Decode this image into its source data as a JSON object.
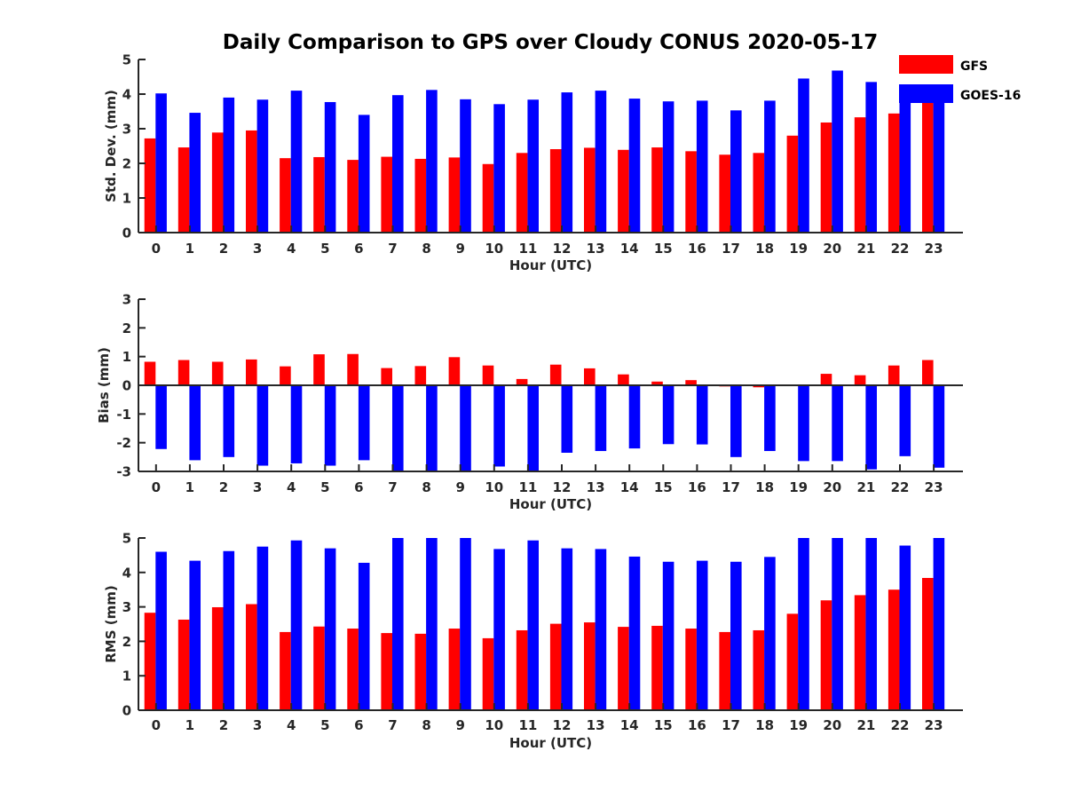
{
  "chart_data": {
    "title": "Daily Comparison to GPS over Cloudy CONUS 2020-05-17",
    "legend": {
      "placement": "top-right",
      "entries": [
        {
          "name": "GFS",
          "color": "#ff0000"
        },
        {
          "name": "GOES-16",
          "color": "#0000ff"
        }
      ]
    },
    "panels": [
      {
        "type": "bar",
        "xlabel": "Hour (UTC)",
        "ylabel": "Std. Dev. (mm)",
        "ylim": [
          0,
          5
        ],
        "yticks": [
          0,
          1,
          2,
          3,
          4,
          5
        ],
        "categories": [
          "0",
          "1",
          "2",
          "3",
          "4",
          "5",
          "6",
          "7",
          "8",
          "9",
          "10",
          "11",
          "12",
          "13",
          "14",
          "15",
          "16",
          "17",
          "18",
          "19",
          "20",
          "21",
          "22",
          "23"
        ],
        "series": [
          {
            "name": "GFS",
            "color": "#ff0000",
            "values": [
              2.72,
              2.46,
              2.89,
              2.95,
              2.15,
              2.18,
              2.1,
              2.19,
              2.13,
              2.17,
              1.98,
              2.3,
              2.41,
              2.45,
              2.39,
              2.46,
              2.35,
              2.25,
              2.3,
              2.8,
              3.18,
              3.33,
              3.44,
              3.78
            ]
          },
          {
            "name": "GOES-16",
            "color": "#0000ff",
            "values": [
              4.02,
              3.46,
              3.9,
              3.84,
              4.1,
              3.77,
              3.4,
              3.97,
              4.12,
              3.85,
              3.71,
              3.84,
              4.05,
              4.1,
              3.87,
              3.79,
              3.81,
              3.53,
              3.81,
              4.45,
              4.68,
              4.35,
              4.1,
              3.9
            ]
          }
        ]
      },
      {
        "type": "bar",
        "xlabel": "Hour (UTC)",
        "ylabel": "Bias (mm)",
        "ylim": [
          -3,
          3
        ],
        "yticks": [
          -3,
          -2,
          -1,
          0,
          1,
          2,
          3
        ],
        "categories": [
          "0",
          "1",
          "2",
          "3",
          "4",
          "5",
          "6",
          "7",
          "8",
          "9",
          "10",
          "11",
          "12",
          "13",
          "14",
          "15",
          "16",
          "17",
          "18",
          "19",
          "20",
          "21",
          "22",
          "23"
        ],
        "series": [
          {
            "name": "GFS",
            "color": "#ff0000",
            "values": [
              0.82,
              0.88,
              0.82,
              0.9,
              0.66,
              1.08,
              1.09,
              0.6,
              0.67,
              0.98,
              0.69,
              0.22,
              0.72,
              0.59,
              0.38,
              0.13,
              0.18,
              -0.04,
              -0.07,
              -0.02,
              0.4,
              0.35,
              0.69,
              0.88
            ]
          },
          {
            "name": "GOES-16",
            "color": "#0000ff",
            "values": [
              -2.22,
              -2.61,
              -2.5,
              -2.8,
              -2.72,
              -2.8,
              -2.61,
              -3.0,
              -3.0,
              -3.0,
              -2.83,
              -3.0,
              -2.35,
              -2.29,
              -2.2,
              -2.05,
              -2.06,
              -2.5,
              -2.29,
              -2.64,
              -2.64,
              -2.93,
              -2.47,
              -2.87
            ]
          }
        ]
      },
      {
        "type": "bar",
        "xlabel": "Hour (UTC)",
        "ylabel": "RMS (mm)",
        "ylim": [
          0,
          5
        ],
        "yticks": [
          0,
          1,
          2,
          3,
          4,
          5
        ],
        "categories": [
          "0",
          "1",
          "2",
          "3",
          "4",
          "5",
          "6",
          "7",
          "8",
          "9",
          "10",
          "11",
          "12",
          "13",
          "14",
          "15",
          "16",
          "17",
          "18",
          "19",
          "20",
          "21",
          "22",
          "23"
        ],
        "series": [
          {
            "name": "GFS",
            "color": "#ff0000",
            "values": [
              2.83,
              2.63,
              2.99,
              3.08,
              2.27,
              2.43,
              2.37,
              2.24,
              2.22,
              2.37,
              2.09,
              2.32,
              2.51,
              2.55,
              2.42,
              2.45,
              2.37,
              2.27,
              2.32,
              2.8,
              3.19,
              3.34,
              3.5,
              3.84
            ]
          },
          {
            "name": "GOES-16",
            "color": "#0000ff",
            "values": [
              4.6,
              4.34,
              4.62,
              4.75,
              4.93,
              4.7,
              4.28,
              5.0,
              5.0,
              5.0,
              4.68,
              4.93,
              4.7,
              4.68,
              4.46,
              4.31,
              4.34,
              4.31,
              4.45,
              5.0,
              5.0,
              5.0,
              4.78,
              5.0
            ]
          }
        ]
      }
    ]
  }
}
